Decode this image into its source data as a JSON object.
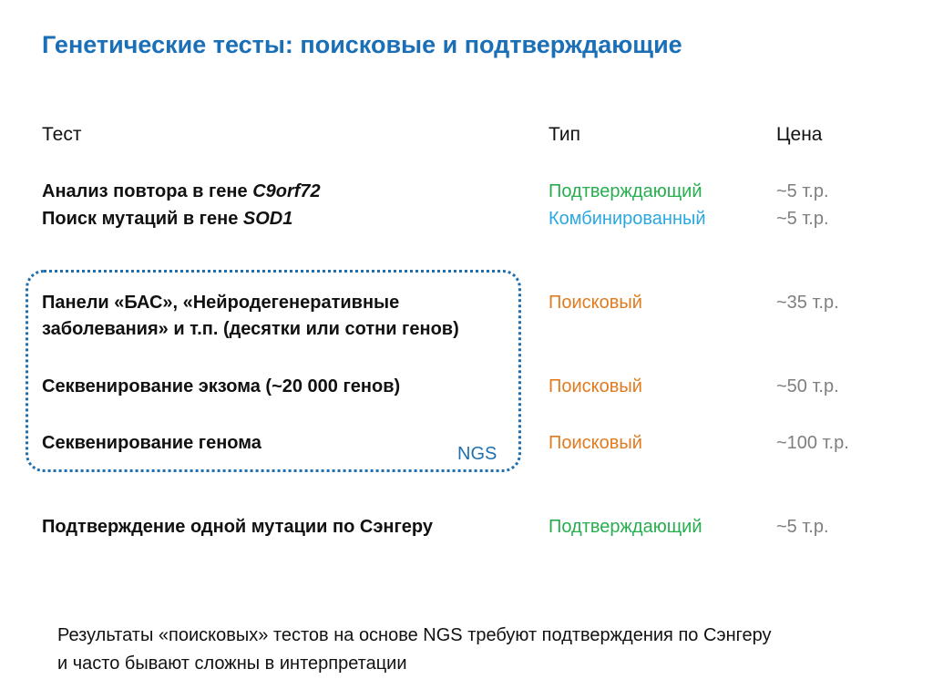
{
  "title": "Генетические тесты: поисковые и подтверждающие",
  "columns": {
    "test": "Тест",
    "type": "Тип",
    "price": "Цена"
  },
  "rows": [
    {
      "test_prefix": "Анализ повтора в гене ",
      "test_gene": "C9orf72",
      "type": "Подтверждающий",
      "price": "~5 т.р."
    },
    {
      "test_prefix": "Поиск мутаций в гене ",
      "test_gene": "SOD1",
      "type": "Комбинированный",
      "price": "~5 т.р."
    },
    {
      "test_line1": "Панели «БАС», «Нейродегенеративные",
      "test_line2": "заболевания» и т.п. (десятки или сотни генов)",
      "type": "Поисковый",
      "price": "~35 т.р."
    },
    {
      "test": "Секвенирование экзома (~20 000 генов)",
      "type": "Поисковый",
      "price": "~50 т.р."
    },
    {
      "test": "Секвенирование генома",
      "type": "Поисковый",
      "price": "~100 т.р."
    },
    {
      "test": "Подтверждение одной мутации по Сэнгеру",
      "type": "Подтверждающий",
      "price": "~5 т.р."
    }
  ],
  "ngs_label": "NGS",
  "colors": {
    "title": "#1a6fb6",
    "confirm": "#27ae4f",
    "combined": "#2aa8df",
    "search": "#e07b1f",
    "price": "#7f7f7f",
    "ngs_border": "#1f6fae"
  },
  "footer": {
    "line1": "Результаты «поисковых» тестов на основе NGS требуют подтверждения по Сэнгеру",
    "line2": "и часто бывают сложны в интерпретации"
  }
}
